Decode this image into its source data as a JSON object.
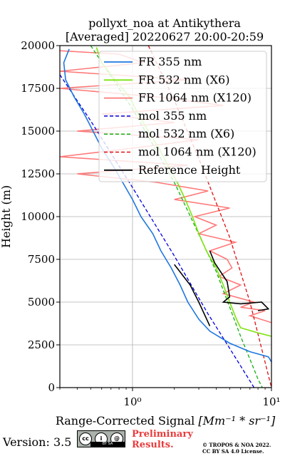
{
  "chart_data": {
    "type": "line",
    "title": "pollyxt_noa at Antikythera",
    "subtitle": "[Averaged] 20220627 20:00-20:59",
    "xlabel": "Range-Corrected Signal",
    "xlabel_unit": "[Mm⁻¹ * sr⁻¹]",
    "ylabel": "Height (m)",
    "xscale": "log",
    "xlim": [
      0.3,
      10
    ],
    "ylim": [
      0,
      20000
    ],
    "xticks": [
      {
        "value": 1,
        "label": "10⁰"
      },
      {
        "value": 10,
        "label": "10¹"
      }
    ],
    "yticks": [
      0,
      2500,
      5000,
      7500,
      10000,
      12500,
      15000,
      17500,
      20000
    ],
    "ytick_labels": [
      "0",
      "2500",
      "5000",
      "7500",
      "10000",
      "12500",
      "15000",
      "17500",
      "20000"
    ],
    "grid": true,
    "legend_position": "top-right",
    "series": [
      {
        "name": "FR 355 nm",
        "color": "#1f77e0",
        "style": "solid",
        "points": [
          [
            0.35,
            19800
          ],
          [
            0.32,
            19000
          ],
          [
            0.33,
            18000
          ],
          [
            0.38,
            17000
          ],
          [
            0.45,
            16000
          ],
          [
            0.52,
            15000
          ],
          [
            0.6,
            14000
          ],
          [
            0.72,
            13000
          ],
          [
            0.85,
            12000
          ],
          [
            1.0,
            11000
          ],
          [
            1.15,
            10000
          ],
          [
            1.4,
            9000
          ],
          [
            1.6,
            8000
          ],
          [
            1.9,
            7000
          ],
          [
            2.2,
            6000
          ],
          [
            2.5,
            5000
          ],
          [
            3.0,
            4000
          ],
          [
            3.6,
            3300
          ],
          [
            5.0,
            2600
          ],
          [
            7.0,
            2100
          ],
          [
            9.5,
            1800
          ],
          [
            10,
            1500
          ]
        ]
      },
      {
        "name": "FR 532 nm (X6)",
        "color": "#7fe312",
        "style": "solid",
        "points": [
          [
            0.55,
            19900
          ],
          [
            0.6,
            19000
          ],
          [
            0.75,
            18000
          ],
          [
            0.95,
            17000
          ],
          [
            1.1,
            16000
          ],
          [
            1.3,
            15000
          ],
          [
            1.55,
            14000
          ],
          [
            1.8,
            13000
          ],
          [
            2.1,
            12000
          ],
          [
            2.4,
            11000
          ],
          [
            2.7,
            10000
          ],
          [
            3.0,
            9000
          ],
          [
            3.4,
            8000
          ],
          [
            4.0,
            7000
          ],
          [
            4.5,
            6000
          ],
          [
            5.0,
            5000
          ],
          [
            5.6,
            4000
          ],
          [
            6.0,
            3500
          ],
          [
            8.0,
            3200
          ],
          [
            10,
            3000
          ]
        ]
      },
      {
        "name": "FR 1064 nm (X120)",
        "color": "#ff7878",
        "style": "solid",
        "points": [
          [
            0.3,
            19700
          ],
          [
            0.8,
            19500
          ],
          [
            1.2,
            19000
          ],
          [
            0.3,
            18500
          ],
          [
            2.5,
            18000
          ],
          [
            0.3,
            17500
          ],
          [
            1.5,
            17000
          ],
          [
            4.5,
            16500
          ],
          [
            0.6,
            16000
          ],
          [
            2.0,
            15500
          ],
          [
            0.4,
            15000
          ],
          [
            3.0,
            14500
          ],
          [
            1.0,
            14000
          ],
          [
            0.3,
            13500
          ],
          [
            2.5,
            13000
          ],
          [
            0.4,
            12500
          ],
          [
            1.5,
            12000
          ],
          [
            3.5,
            11500
          ],
          [
            2.0,
            11000
          ],
          [
            5.0,
            10500
          ],
          [
            2.8,
            10000
          ],
          [
            4.0,
            9500
          ],
          [
            3.0,
            9000
          ],
          [
            5.5,
            8500
          ],
          [
            3.6,
            8000
          ],
          [
            4.8,
            7500
          ],
          [
            5.2,
            7000
          ],
          [
            4.2,
            6500
          ],
          [
            6.0,
            6000
          ],
          [
            4.5,
            5500
          ],
          [
            7.5,
            5000
          ],
          [
            6.0,
            4700
          ],
          [
            9.0,
            4500
          ],
          [
            7.0,
            4200
          ],
          [
            10,
            3800
          ]
        ]
      },
      {
        "name": "mol 355 nm",
        "color": "#0000e0",
        "style": "dashed",
        "points": [
          [
            0.3,
            18300
          ],
          [
            0.5,
            15600
          ],
          [
            1.0,
            11700
          ],
          [
            2.0,
            7700
          ],
          [
            3.5,
            4300
          ],
          [
            5.0,
            2300
          ],
          [
            7.5,
            0
          ]
        ]
      },
      {
        "name": "mol 532 nm (X6)",
        "color": "#10b010",
        "style": "dashed",
        "points": [
          [
            0.5,
            20000
          ],
          [
            1.0,
            16300
          ],
          [
            2.0,
            12000
          ],
          [
            4.0,
            6800
          ],
          [
            6.0,
            3000
          ],
          [
            8.0,
            500
          ],
          [
            8.6,
            0
          ]
        ]
      },
      {
        "name": "mol 1064 nm (X120)",
        "color": "#e01010",
        "style": "dashed",
        "points": [
          [
            1.3,
            20000
          ],
          [
            2.0,
            16800
          ],
          [
            3.0,
            13400
          ],
          [
            5.0,
            8800
          ],
          [
            7.0,
            5000
          ],
          [
            10,
            0
          ]
        ]
      },
      {
        "name": "Reference Height",
        "color": "#000000",
        "style": "solid",
        "points": [
          [
            2.0,
            7200
          ],
          [
            2.6,
            6000
          ],
          [
            3.0,
            5000
          ],
          [
            3.6,
            3600
          ]
        ],
        "points2": [
          [
            3.6,
            8000
          ],
          [
            3.9,
            7300
          ],
          [
            4.8,
            6200
          ],
          [
            5.0,
            5300
          ],
          [
            4.5,
            5000
          ],
          [
            6.0,
            4900
          ],
          [
            8.5,
            5000
          ],
          [
            9.5,
            4600
          ],
          [
            8.0,
            4500
          ]
        ]
      }
    ]
  },
  "footer": {
    "version": "Version: 3.5",
    "cc_label": "BY SA",
    "preliminary_line1": "Preliminary",
    "preliminary_line2": "Results.",
    "copyright_line1": "© TROPOS & NOA 2022.",
    "copyright_line2": "CC BY SA 4.0 License."
  }
}
